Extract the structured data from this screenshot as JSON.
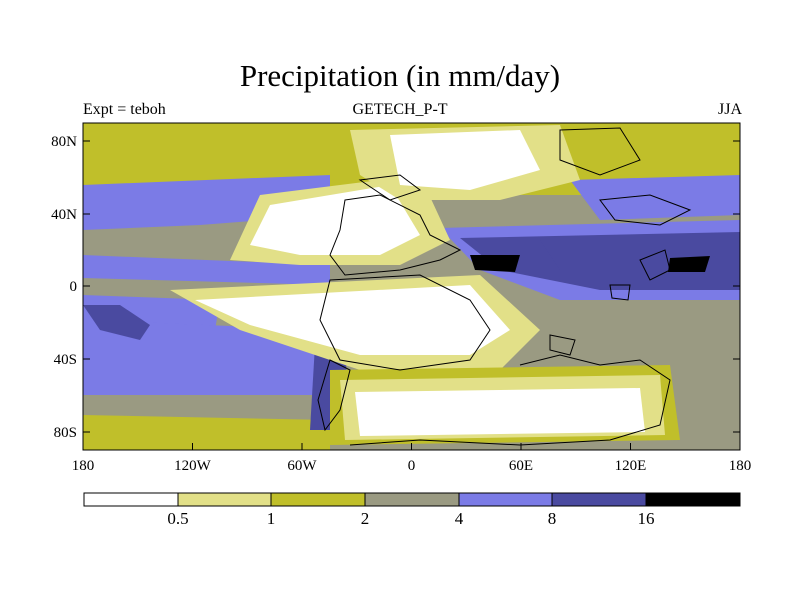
{
  "title": "Precipitation (in mm/day)",
  "subtitle_left": "Expt = teboh",
  "subtitle_center": "GETECH_P-T",
  "subtitle_right": "JJA",
  "y_axis_labels": [
    "80N",
    "40N",
    "0",
    "40S",
    "80S"
  ],
  "x_axis_labels": [
    "180",
    "120W",
    "60W",
    "0",
    "60E",
    "120E",
    "180"
  ],
  "colorbar": {
    "labels": [
      "0.5",
      "1",
      "2",
      "4",
      "8",
      "16"
    ],
    "colors": [
      "#ffffff",
      "#e2e088",
      "#c0bf2a",
      "#9a9a82",
      "#7b7be6",
      "#4a4aa0",
      "#000000"
    ]
  },
  "palette": {
    "white": "#ffffff",
    "light_yellow": "#e2e088",
    "olive": "#c0bf2a",
    "gray": "#9a9a82",
    "blue": "#7b7be6",
    "dark_blue": "#4a4aa0",
    "black": "#000000"
  }
}
